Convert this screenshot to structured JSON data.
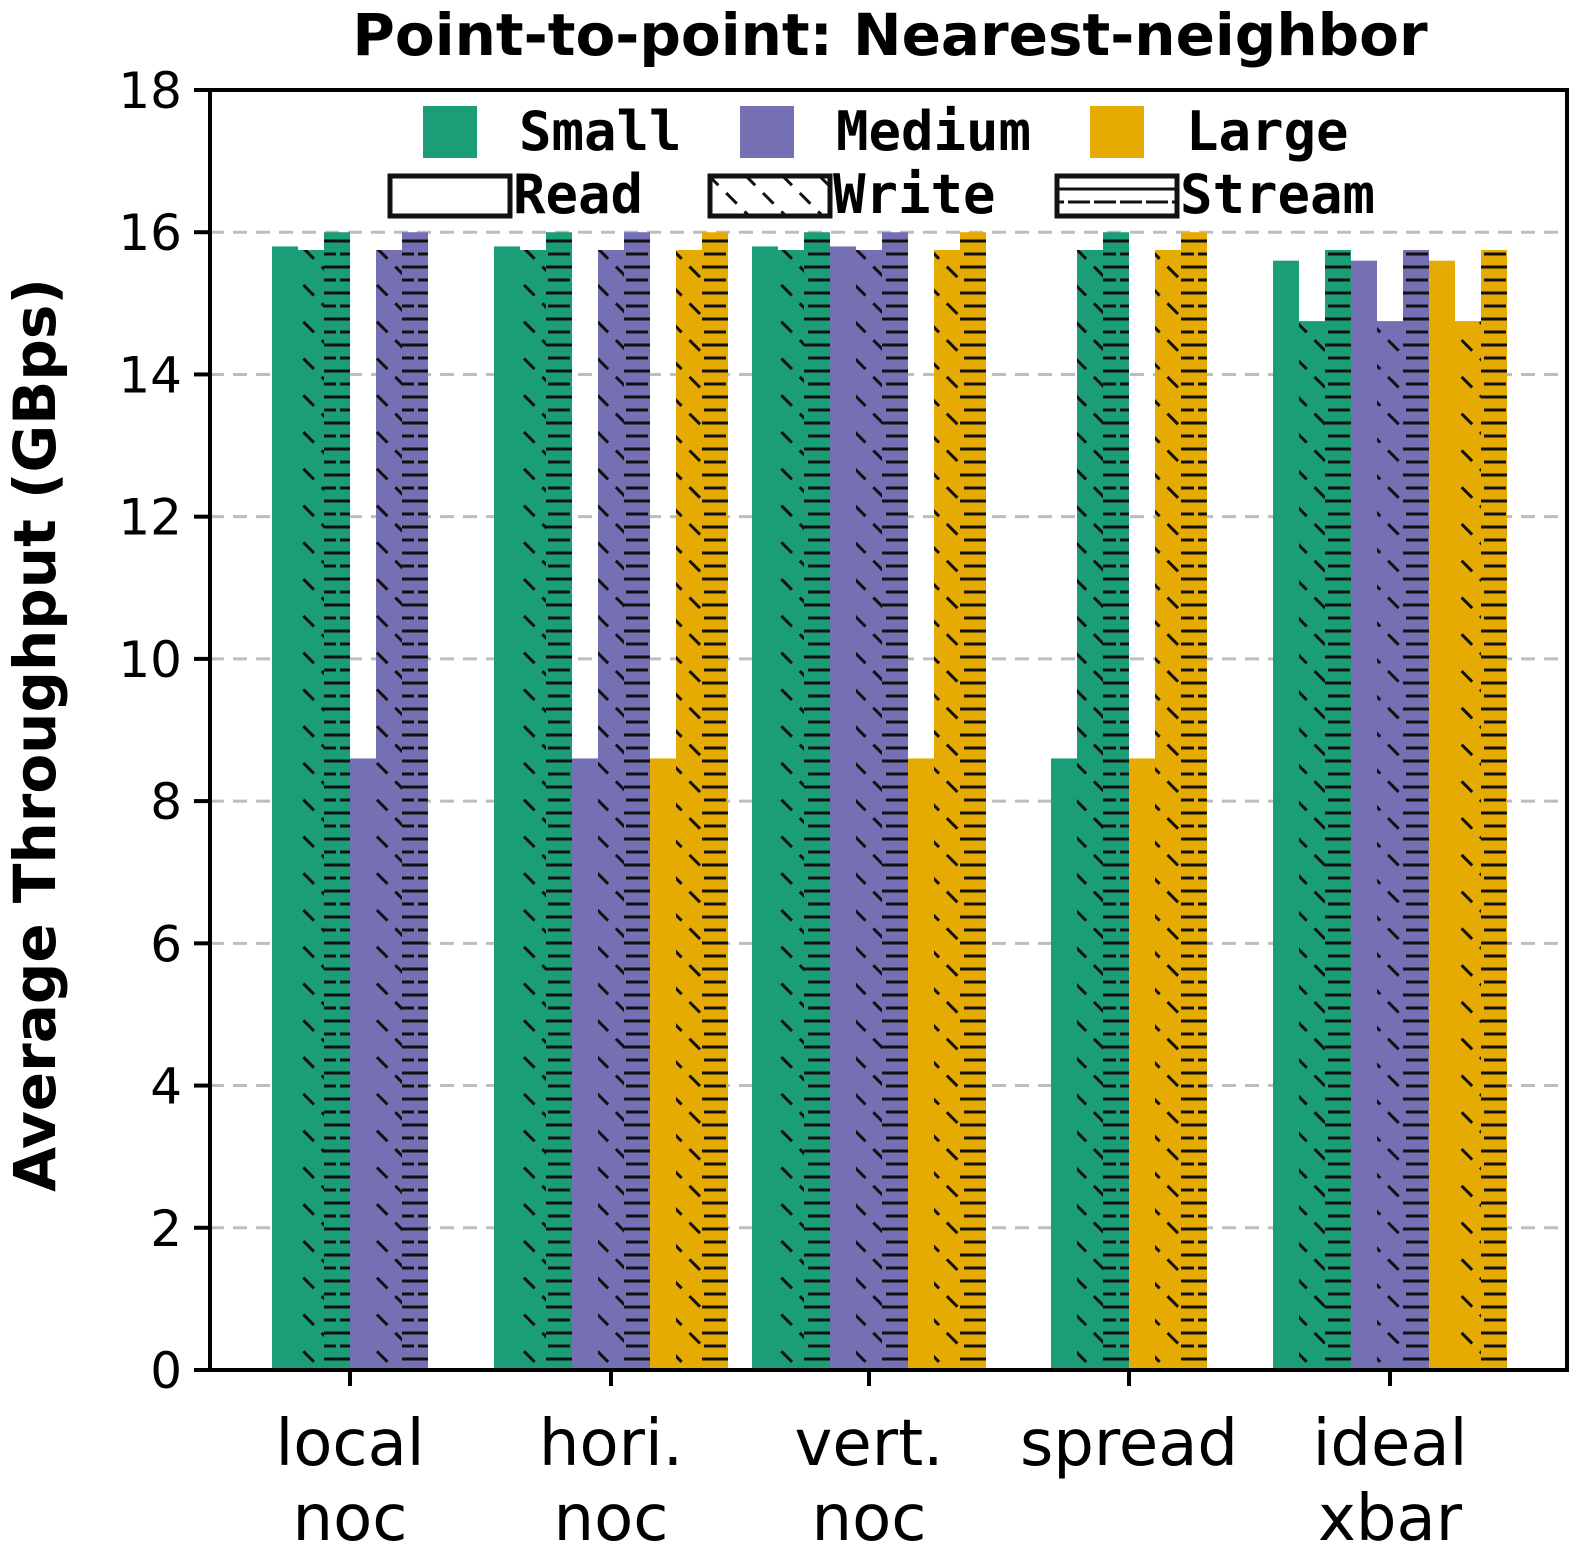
{
  "chart_data": {
    "type": "bar",
    "title": "Point-to-point: Nearest-neighbor",
    "ylabel": "Average Throughput (GBps)",
    "xlabel": "",
    "ylim": [
      0,
      18
    ],
    "yticks": [
      "0",
      "2",
      "4",
      "6",
      "8",
      "10",
      "12",
      "14",
      "16",
      "18"
    ],
    "grid": "horizontal dashed",
    "legend_placement": "top",
    "categories": [
      {
        "line1": "local",
        "line2": "noc"
      },
      {
        "line1": "hori.",
        "line2": "noc"
      },
      {
        "line1": "vert.",
        "line2": "noc"
      },
      {
        "line1": "spread",
        "line2": ""
      },
      {
        "line1": "ideal",
        "line2": "xbar"
      }
    ],
    "sizes": [
      {
        "name": "Small",
        "color": "#1b9e77"
      },
      {
        "name": "Medium",
        "color": "#7570b3"
      },
      {
        "name": "Large",
        "color": "#e6ab02"
      }
    ],
    "patterns": [
      {
        "name": "Read",
        "hatch": "none"
      },
      {
        "name": "Write",
        "hatch": "diagonal"
      },
      {
        "name": "Stream",
        "hatch": "horizontal"
      }
    ],
    "series": [
      {
        "size": "Small",
        "pattern": "Read",
        "values": [
          15.8,
          15.8,
          15.8,
          8.6,
          15.6
        ]
      },
      {
        "size": "Small",
        "pattern": "Write",
        "values": [
          15.75,
          15.75,
          15.75,
          15.75,
          14.75
        ]
      },
      {
        "size": "Small",
        "pattern": "Stream",
        "values": [
          16.0,
          16.0,
          16.0,
          16.0,
          15.75
        ]
      },
      {
        "size": "Medium",
        "pattern": "Read",
        "values": [
          8.6,
          8.6,
          15.8,
          null,
          15.6
        ]
      },
      {
        "size": "Medium",
        "pattern": "Write",
        "values": [
          15.75,
          15.75,
          15.75,
          null,
          14.75
        ]
      },
      {
        "size": "Medium",
        "pattern": "Stream",
        "values": [
          16.0,
          16.0,
          16.0,
          null,
          15.75
        ]
      },
      {
        "size": "Large",
        "pattern": "Read",
        "values": [
          null,
          8.6,
          8.6,
          8.6,
          15.6
        ]
      },
      {
        "size": "Large",
        "pattern": "Write",
        "values": [
          null,
          15.75,
          15.75,
          15.75,
          14.75
        ]
      },
      {
        "size": "Large",
        "pattern": "Stream",
        "values": [
          null,
          16.0,
          16.0,
          16.0,
          15.75
        ]
      }
    ]
  }
}
